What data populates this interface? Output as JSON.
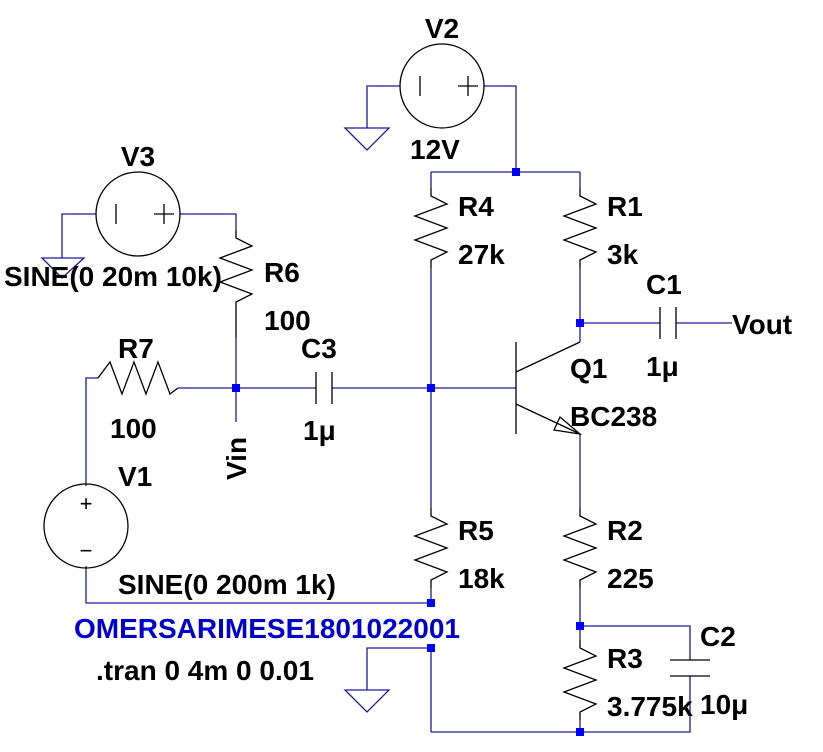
{
  "components": {
    "v1": {
      "name": "V1",
      "value": "SINE(0 200m 1k)"
    },
    "v2": {
      "name": "V2",
      "value": "12V"
    },
    "v3": {
      "name": "V3",
      "value": "SINE(0 20m 10k)"
    },
    "r1": {
      "name": "R1",
      "value": "3k"
    },
    "r2": {
      "name": "R2",
      "value": "225"
    },
    "r3": {
      "name": "R3",
      "value": "3.775k"
    },
    "r4": {
      "name": "R4",
      "value": "27k"
    },
    "r5": {
      "name": "R5",
      "value": "18k"
    },
    "r6": {
      "name": "R6",
      "value": "100"
    },
    "r7": {
      "name": "R7",
      "value": "100"
    },
    "c1": {
      "name": "C1",
      "value": "1μ"
    },
    "c2": {
      "name": "C2",
      "value": "10μ"
    },
    "c3": {
      "name": "C3",
      "value": "1μ"
    },
    "q1": {
      "name": "Q1",
      "value": "BC238"
    }
  },
  "nets": {
    "vin": "Vin",
    "vout": "Vout"
  },
  "comment": "OMERSARIMESE1801022001",
  "directive": ".tran 0 4m 0 0.01",
  "symbols": {
    "plus": "+",
    "minus": "−"
  },
  "colors": {
    "wire": "#1c1c9a",
    "component": "#000000",
    "junction": "#0000ff",
    "comment": "#0000cc",
    "background": "#ffffff"
  }
}
